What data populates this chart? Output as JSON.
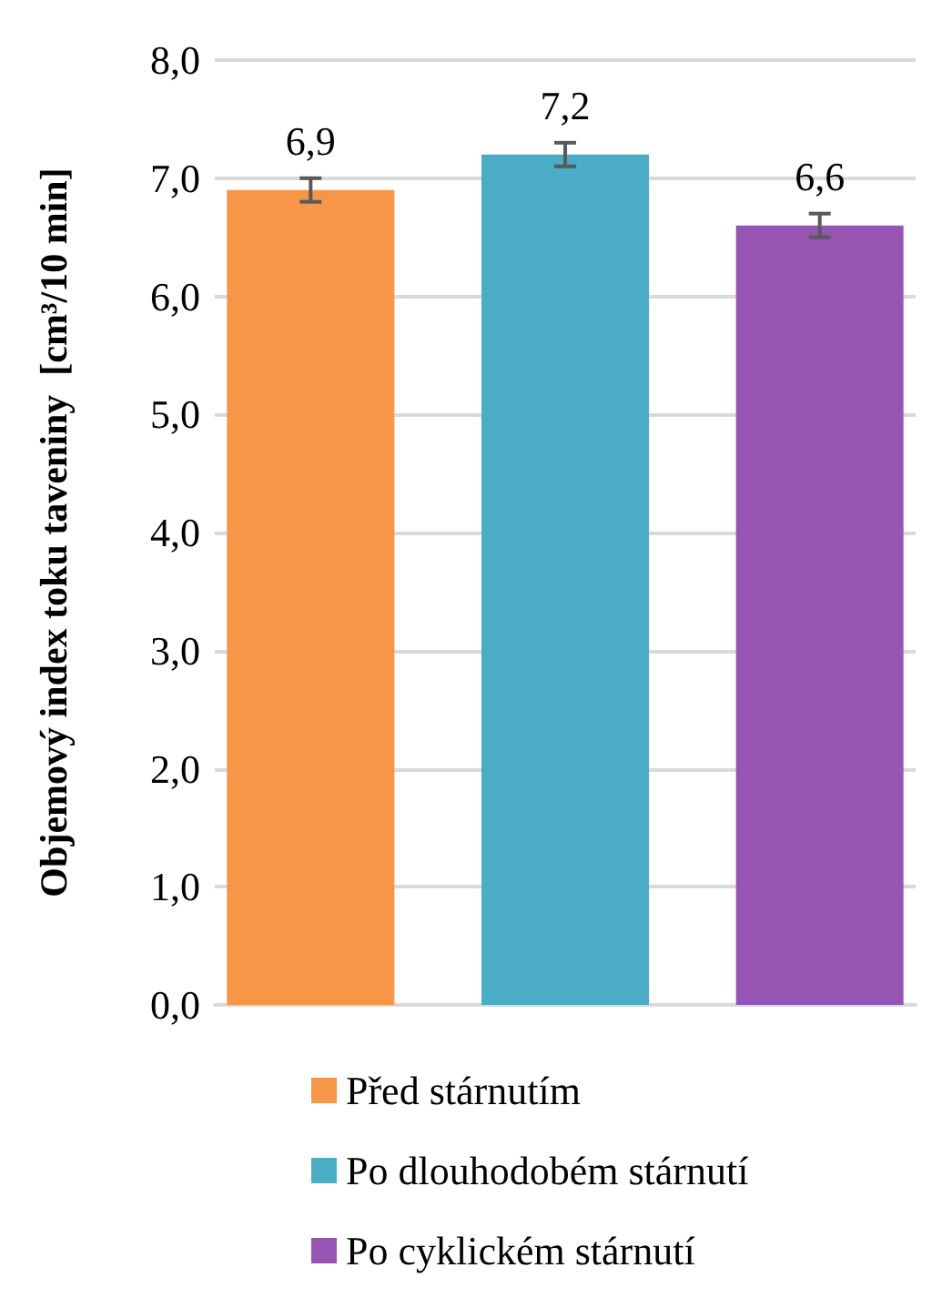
{
  "chart_data": {
    "type": "bar",
    "ylabel": "Objemový index toku taveniny  [cm³/10 min]",
    "categories": [
      null
    ],
    "series": [
      {
        "name": "Před stárnutím",
        "color": "#f79646",
        "values": [
          6.9
        ],
        "errors": [
          0.1
        ],
        "value_labels": [
          "6,9"
        ]
      },
      {
        "name": "Po dlouhodobém stárnutí",
        "color": "#4bacc6",
        "values": [
          7.2
        ],
        "errors": [
          0.1
        ],
        "value_labels": [
          "7,2"
        ]
      },
      {
        "name": "Po cyklickém stárnutí",
        "color": "#9655b3",
        "values": [
          6.6
        ],
        "errors": [
          0.1
        ],
        "value_labels": [
          "6,6"
        ]
      }
    ],
    "ylim": [
      0,
      8
    ],
    "yticks": [
      {
        "value": 0,
        "label": "0,0"
      },
      {
        "value": 1,
        "label": "1,0"
      },
      {
        "value": 2,
        "label": "2,0"
      },
      {
        "value": 3,
        "label": "3,0"
      },
      {
        "value": 4,
        "label": "4,0"
      },
      {
        "value": 5,
        "label": "5,0"
      },
      {
        "value": 6,
        "label": "6,0"
      },
      {
        "value": 7,
        "label": "7,0"
      },
      {
        "value": 8,
        "label": "8,0"
      }
    ],
    "grid": "y",
    "legend": "bottom"
  }
}
